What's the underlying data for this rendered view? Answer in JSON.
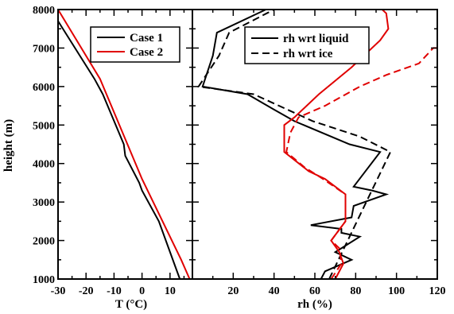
{
  "chart_data": [
    {
      "type": "line",
      "xlabel": "T (°C)",
      "ylabel": "height (m)",
      "xlim": [
        -30,
        18
      ],
      "ylim": [
        1000,
        8000
      ],
      "x_ticks": [
        "-30",
        "-20",
        "-10",
        "0",
        "10"
      ],
      "x_tick_values": [
        -30,
        -20,
        -10,
        0,
        10
      ],
      "y_ticks": [
        "1000",
        "2000",
        "3000",
        "4000",
        "5000",
        "6000",
        "7000",
        "8000"
      ],
      "y_tick_values": [
        1000,
        2000,
        3000,
        4000,
        5000,
        6000,
        7000,
        8000
      ],
      "legend_position": "top-right",
      "series": [
        {
          "name": "Case 1",
          "color": "#000000",
          "dash": "solid",
          "points": [
            [
              13.5,
              1000
            ],
            [
              12,
              1300
            ],
            [
              6,
              2500
            ],
            [
              0,
              3300
            ],
            [
              -1,
              3500
            ],
            [
              -6,
              4200
            ],
            [
              -6.5,
              4500
            ],
            [
              -14,
              5800
            ],
            [
              -17,
              6200
            ],
            [
              -30,
              7700
            ]
          ]
        },
        {
          "name": "Case 2",
          "color": "#e00000",
          "dash": "solid",
          "points": [
            [
              17,
              1000
            ],
            [
              14,
              1500
            ],
            [
              0,
              3600
            ],
            [
              -15,
              6200
            ],
            [
              -30,
              8000
            ]
          ]
        }
      ]
    },
    {
      "type": "line",
      "xlabel": "rh (%)",
      "xlim": [
        0,
        120
      ],
      "ylim": [
        1000,
        8000
      ],
      "x_ticks": [
        "20",
        "40",
        "60",
        "80",
        "100",
        "120"
      ],
      "x_tick_values": [
        20,
        40,
        60,
        80,
        100,
        120
      ],
      "legend_position": "top-right",
      "series": [
        {
          "name": "rh wrt liquid",
          "color": "#000000",
          "dash": "solid",
          "points": [
            [
              63,
              1000
            ],
            [
              65,
              1200
            ],
            [
              78,
              1500
            ],
            [
              70,
              1700
            ],
            [
              82,
              2100
            ],
            [
              73,
              2200
            ],
            [
              73,
              2300
            ],
            [
              58,
              2400
            ],
            [
              78,
              2600
            ],
            [
              79,
              2900
            ],
            [
              95,
              3200
            ],
            [
              88,
              3300
            ],
            [
              79,
              3400
            ],
            [
              92,
              4300
            ],
            [
              77,
              4500
            ],
            [
              50,
              5100
            ],
            [
              40,
              5400
            ],
            [
              27,
              5800
            ],
            [
              5,
              6000
            ],
            [
              10,
              6800
            ],
            [
              12,
              7400
            ],
            [
              36,
              8000
            ]
          ]
        },
        {
          "name": "rh wrt ice",
          "color": "#000000",
          "dash": "dashed",
          "points": [
            [
              67,
              1000
            ],
            [
              97,
              4300
            ],
            [
              82,
              4700
            ],
            [
              59,
              5100
            ],
            [
              30,
              5800
            ],
            [
              3,
              6000
            ],
            [
              13,
              6800
            ],
            [
              18,
              7400
            ],
            [
              40,
              8000
            ]
          ]
        },
        {
          "name": "",
          "color": "#e00000",
          "dash": "solid",
          "points": [
            [
              70,
              1000
            ],
            [
              74,
              1400
            ],
            [
              72,
              1700
            ],
            [
              68,
              2000
            ],
            [
              75,
              2500
            ],
            [
              75,
              3200
            ],
            [
              65,
              3600
            ],
            [
              57,
              3800
            ],
            [
              45,
              4300
            ],
            [
              45,
              5000
            ],
            [
              50,
              5200
            ],
            [
              62,
              5800
            ],
            [
              78,
              6500
            ],
            [
              92,
              7200
            ],
            [
              96,
              7500
            ],
            [
              95,
              7900
            ],
            [
              93,
              8000
            ]
          ]
        },
        {
          "name": "",
          "color": "#e00000",
          "dash": "dashed",
          "points": [
            [
              68,
              1000
            ],
            [
              73,
              1400
            ],
            [
              72,
              1800
            ],
            [
              68,
              2000
            ],
            [
              75,
              2500
            ],
            [
              75,
              3200
            ],
            [
              64,
              3600
            ],
            [
              55,
              3900
            ],
            [
              46,
              4300
            ],
            [
              48,
              4800
            ],
            [
              52,
              5200
            ],
            [
              65,
              5500
            ],
            [
              82,
              6000
            ],
            [
              95,
              6300
            ],
            [
              111,
              6600
            ],
            [
              118,
              7000
            ],
            [
              120,
              7000
            ]
          ]
        }
      ]
    }
  ]
}
